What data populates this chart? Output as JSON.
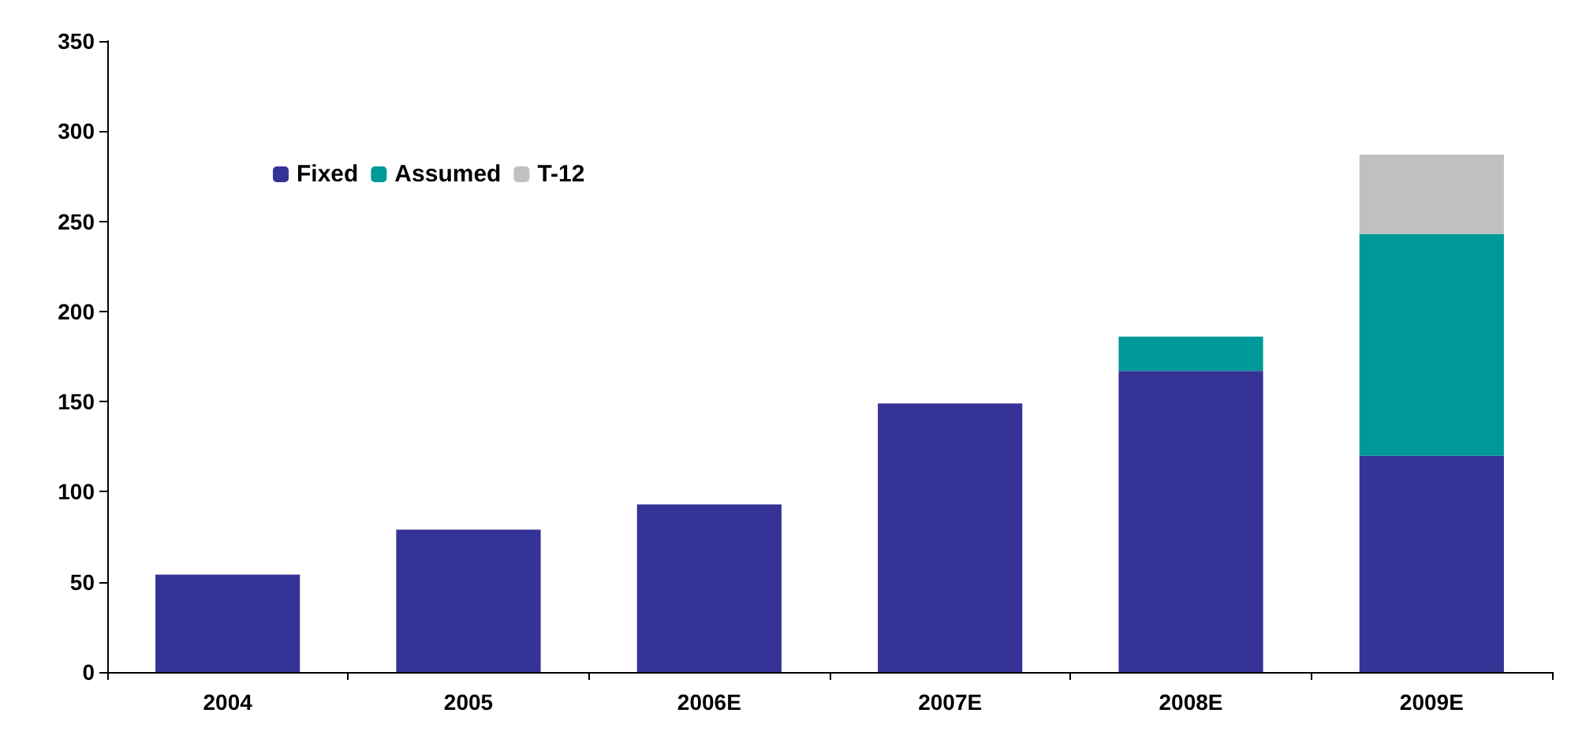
{
  "chart_data": {
    "type": "bar",
    "stacked": true,
    "categories": [
      "2004",
      "2005",
      "2006E",
      "2007E",
      "2008E",
      "2009E"
    ],
    "series": [
      {
        "name": "Fixed",
        "color": "#363396",
        "values": [
          54,
          79,
          93,
          149,
          167,
          120
        ]
      },
      {
        "name": "Assumed",
        "color": "#009999",
        "values": [
          null,
          null,
          null,
          null,
          19,
          123
        ]
      },
      {
        "name": "T-12",
        "color": "#c0c0c0",
        "values": [
          null,
          null,
          null,
          null,
          null,
          44
        ]
      }
    ],
    "ylim": [
      0,
      350
    ],
    "yticks": [
      0,
      50,
      100,
      150,
      200,
      250,
      300,
      350
    ],
    "grid": false,
    "legend": "top left"
  }
}
